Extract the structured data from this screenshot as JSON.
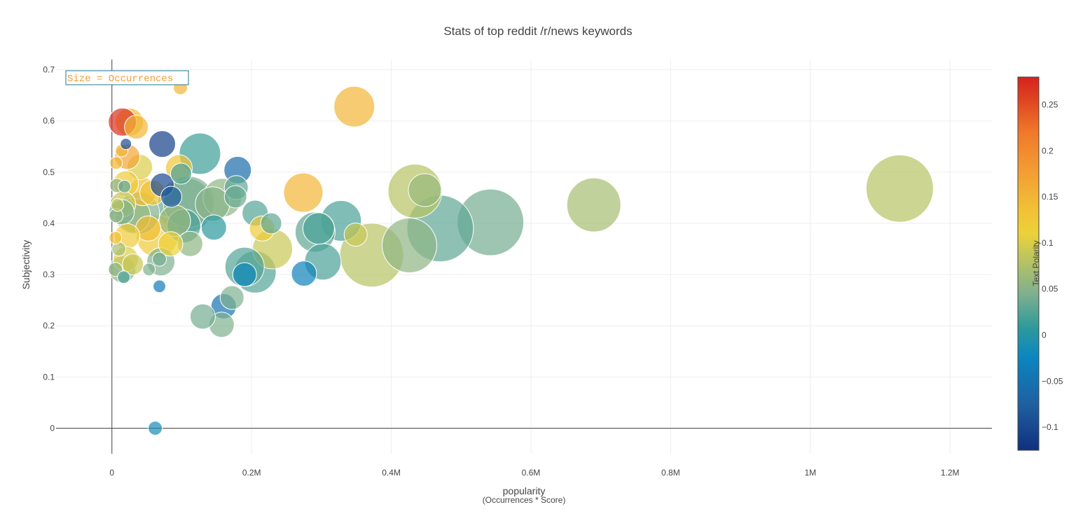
{
  "chart_data": {
    "type": "scatter",
    "title": "Stats of top reddit /r/news keywords",
    "xlabel": "popularity",
    "xlabel_sub": "(Occurrences * Score)",
    "ylabel": "Subjectivity",
    "xlim": [
      -80000,
      1260000
    ],
    "ylim": [
      -0.05,
      0.72
    ],
    "x_ticks": [
      0,
      200000,
      400000,
      600000,
      800000,
      1000000,
      1200000
    ],
    "x_tick_labels": [
      "0",
      "0.2M",
      "0.4M",
      "0.6M",
      "0.8M",
      "1M",
      "1.2M"
    ],
    "y_ticks": [
      0,
      0.1,
      0.2,
      0.3,
      0.4,
      0.5,
      0.6,
      0.7
    ],
    "y_tick_labels": [
      "0",
      "0.1",
      "0.2",
      "0.3",
      "0.4",
      "0.5",
      "0.6",
      "0.7"
    ],
    "grid": true,
    "annotation": {
      "text": "Size = Occurrences",
      "color": "#f39c32",
      "border_color": "#1f7a94"
    },
    "colorbar": {
      "title": "Text Polarity",
      "min": -0.125,
      "max": 0.28,
      "ticks": [
        -0.1,
        -0.05,
        0,
        0.05,
        0.1,
        0.15,
        0.2,
        0.25
      ],
      "tick_labels": [
        "−0.1",
        "−0.05",
        "0",
        "0.05",
        "0.1",
        "0.15",
        "0.2",
        "0.25"
      ],
      "colorscale": [
        [
          0.0,
          "#10307f"
        ],
        [
          0.12,
          "#1f5fa0"
        ],
        [
          0.25,
          "#0b86c0"
        ],
        [
          0.33,
          "#2f9a9a"
        ],
        [
          0.42,
          "#7fb08f"
        ],
        [
          0.52,
          "#bfc65c"
        ],
        [
          0.58,
          "#ecd23a"
        ],
        [
          0.65,
          "#f2bf35"
        ],
        [
          0.75,
          "#f39c32"
        ],
        [
          0.85,
          "#f07a2a"
        ],
        [
          0.93,
          "#e04a22"
        ],
        [
          1.0,
          "#d6211e"
        ]
      ]
    },
    "points": [
      {
        "x": 1128000,
        "y": 0.468,
        "size": 96,
        "color": 0.08
      },
      {
        "x": 690000,
        "y": 0.436,
        "size": 77,
        "color": 0.07
      },
      {
        "x": 542000,
        "y": 0.402,
        "size": 95,
        "color": 0.04
      },
      {
        "x": 470000,
        "y": 0.39,
        "size": 95,
        "color": 0.03
      },
      {
        "x": 426000,
        "y": 0.357,
        "size": 78,
        "color": 0.055
      },
      {
        "x": 372000,
        "y": 0.338,
        "size": 91,
        "color": 0.08
      },
      {
        "x": 434000,
        "y": 0.463,
        "size": 77,
        "color": 0.08
      },
      {
        "x": 448000,
        "y": 0.465,
        "size": 47,
        "color": 0.06
      },
      {
        "x": 347000,
        "y": 0.628,
        "size": 58,
        "color": 0.15
      },
      {
        "x": 274000,
        "y": 0.46,
        "size": 56,
        "color": 0.15
      },
      {
        "x": 328000,
        "y": 0.405,
        "size": 58,
        "color": 0.02
      },
      {
        "x": 349000,
        "y": 0.378,
        "size": 33,
        "color": 0.09
      },
      {
        "x": 291000,
        "y": 0.383,
        "size": 57,
        "color": 0.03
      },
      {
        "x": 296000,
        "y": 0.39,
        "size": 45,
        "color": 0.02
      },
      {
        "x": 302000,
        "y": 0.325,
        "size": 52,
        "color": 0.02
      },
      {
        "x": 275000,
        "y": 0.302,
        "size": 36,
        "color": -0.03
      },
      {
        "x": 230000,
        "y": 0.35,
        "size": 57,
        "color": 0.09
      },
      {
        "x": 215000,
        "y": 0.39,
        "size": 36,
        "color": 0.12
      },
      {
        "x": 228000,
        "y": 0.4,
        "size": 30,
        "color": 0.03
      },
      {
        "x": 205000,
        "y": 0.42,
        "size": 37,
        "color": 0.025
      },
      {
        "x": 190000,
        "y": 0.315,
        "size": 56,
        "color": 0.025
      },
      {
        "x": 205000,
        "y": 0.305,
        "size": 60,
        "color": 0.025
      },
      {
        "x": 190000,
        "y": 0.3,
        "size": 34,
        "color": -0.02
      },
      {
        "x": 172000,
        "y": 0.255,
        "size": 34,
        "color": 0.045
      },
      {
        "x": 160000,
        "y": 0.238,
        "size": 36,
        "color": -0.05
      },
      {
        "x": 157000,
        "y": 0.202,
        "size": 36,
        "color": 0.045
      },
      {
        "x": 130000,
        "y": 0.218,
        "size": 36,
        "color": 0.04
      },
      {
        "x": 180000,
        "y": 0.504,
        "size": 39,
        "color": -0.06
      },
      {
        "x": 178000,
        "y": 0.47,
        "size": 34,
        "color": 0.03
      },
      {
        "x": 177000,
        "y": 0.452,
        "size": 32,
        "color": 0.035
      },
      {
        "x": 158000,
        "y": 0.45,
        "size": 55,
        "color": 0.055
      },
      {
        "x": 144000,
        "y": 0.438,
        "size": 49,
        "color": 0.05
      },
      {
        "x": 146000,
        "y": 0.392,
        "size": 36,
        "color": 0.005
      },
      {
        "x": 126000,
        "y": 0.536,
        "size": 59,
        "color": 0.015
      },
      {
        "x": 105000,
        "y": 0.435,
        "size": 79,
        "color": 0.035
      },
      {
        "x": 110000,
        "y": 0.442,
        "size": 73,
        "color": 0.045
      },
      {
        "x": 103000,
        "y": 0.395,
        "size": 48,
        "color": 0.02
      },
      {
        "x": 112000,
        "y": 0.36,
        "size": 36,
        "color": 0.055
      },
      {
        "x": 96000,
        "y": 0.508,
        "size": 38,
        "color": 0.13
      },
      {
        "x": 99000,
        "y": 0.497,
        "size": 30,
        "color": 0.02
      },
      {
        "x": 98000,
        "y": 0.665,
        "size": 20,
        "color": 0.15
      },
      {
        "x": 72000,
        "y": 0.555,
        "size": 38,
        "color": -0.11
      },
      {
        "x": 72000,
        "y": 0.475,
        "size": 34,
        "color": -0.1
      },
      {
        "x": 85000,
        "y": 0.452,
        "size": 30,
        "color": -0.08
      },
      {
        "x": 90000,
        "y": 0.405,
        "size": 45,
        "color": 0.06
      },
      {
        "x": 84000,
        "y": 0.36,
        "size": 35,
        "color": 0.11
      },
      {
        "x": 65000,
        "y": 0.375,
        "size": 60,
        "color": 0.12
      },
      {
        "x": 52000,
        "y": 0.39,
        "size": 36,
        "color": 0.14
      },
      {
        "x": 70000,
        "y": 0.325,
        "size": 40,
        "color": 0.045
      },
      {
        "x": 68000,
        "y": 0.33,
        "size": 20,
        "color": 0.04
      },
      {
        "x": 53000,
        "y": 0.31,
        "size": 18,
        "color": 0.045
      },
      {
        "x": 68000,
        "y": 0.277,
        "size": 18,
        "color": -0.04
      },
      {
        "x": 62000,
        "y": 0.0,
        "size": 20,
        "color": -0.015
      },
      {
        "x": 58000,
        "y": 0.46,
        "size": 36,
        "color": 0.13
      },
      {
        "x": 44000,
        "y": 0.462,
        "size": 40,
        "color": 0.14
      },
      {
        "x": 40000,
        "y": 0.51,
        "size": 36,
        "color": 0.1
      },
      {
        "x": 35000,
        "y": 0.588,
        "size": 34,
        "color": 0.15
      },
      {
        "x": 25000,
        "y": 0.598,
        "size": 40,
        "color": 0.14
      },
      {
        "x": 15000,
        "y": 0.598,
        "size": 40,
        "color": 0.27
      },
      {
        "x": 22000,
        "y": 0.53,
        "size": 36,
        "color": 0.17
      },
      {
        "x": 20000,
        "y": 0.555,
        "size": 16,
        "color": -0.1
      },
      {
        "x": 14000,
        "y": 0.542,
        "size": 18,
        "color": 0.15
      },
      {
        "x": 6000,
        "y": 0.518,
        "size": 18,
        "color": 0.15
      },
      {
        "x": 20000,
        "y": 0.478,
        "size": 36,
        "color": 0.12
      },
      {
        "x": 18000,
        "y": 0.472,
        "size": 18,
        "color": 0.03
      },
      {
        "x": 7000,
        "y": 0.474,
        "size": 20,
        "color": 0.055
      },
      {
        "x": 38000,
        "y": 0.42,
        "size": 60,
        "color": 0.045
      },
      {
        "x": 30000,
        "y": 0.415,
        "size": 50,
        "color": 0.06
      },
      {
        "x": 16000,
        "y": 0.438,
        "size": 36,
        "color": 0.09
      },
      {
        "x": 8000,
        "y": 0.436,
        "size": 18,
        "color": 0.08
      },
      {
        "x": 14000,
        "y": 0.422,
        "size": 36,
        "color": 0.045
      },
      {
        "x": 6000,
        "y": 0.415,
        "size": 20,
        "color": 0.055
      },
      {
        "x": 22000,
        "y": 0.375,
        "size": 36,
        "color": 0.12
      },
      {
        "x": 5000,
        "y": 0.372,
        "size": 18,
        "color": 0.14
      },
      {
        "x": 10000,
        "y": 0.35,
        "size": 20,
        "color": 0.07
      },
      {
        "x": 20000,
        "y": 0.33,
        "size": 36,
        "color": 0.1
      },
      {
        "x": 30000,
        "y": 0.32,
        "size": 30,
        "color": 0.09
      },
      {
        "x": 15000,
        "y": 0.31,
        "size": 38,
        "color": 0.055
      },
      {
        "x": 5000,
        "y": 0.31,
        "size": 20,
        "color": 0.055
      },
      {
        "x": 17000,
        "y": 0.295,
        "size": 18,
        "color": 0.02
      }
    ]
  }
}
